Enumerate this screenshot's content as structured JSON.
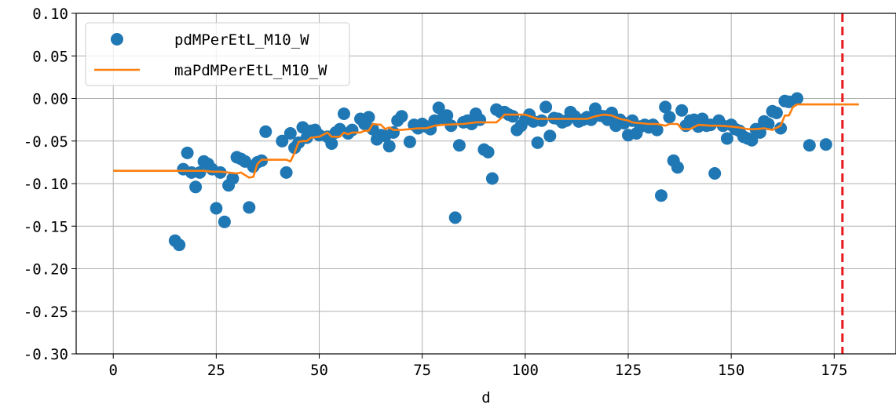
{
  "chart_data": {
    "type": "scatter",
    "title": "",
    "xlabel": "d",
    "ylabel": "",
    "xlim": [
      -9,
      190
    ],
    "ylim": [
      -0.3,
      0.1
    ],
    "grid": true,
    "legend_position": "top-left",
    "x_ticks": [
      0,
      25,
      50,
      75,
      100,
      125,
      150,
      175
    ],
    "x_tick_labels": [
      "0",
      "25",
      "50",
      "75",
      "100",
      "125",
      "150",
      "175"
    ],
    "y_ticks": [
      0.1,
      0.05,
      0.0,
      -0.05,
      -0.1,
      -0.15,
      -0.2,
      -0.25,
      -0.3
    ],
    "y_tick_labels": [
      "0.10",
      "0.05",
      "0.00",
      "-0.05",
      "-0.10",
      "-0.15",
      "-0.20",
      "-0.25",
      "-0.30"
    ],
    "series": [
      {
        "name": "pdMPerEtL_M10_W",
        "kind": "scatter",
        "color": "#1f77b4",
        "x": [
          15,
          16,
          17,
          18,
          19,
          20,
          21,
          22,
          23,
          24,
          25,
          26,
          27,
          28,
          29,
          30,
          31,
          32,
          33,
          34,
          35,
          36,
          37,
          41,
          42,
          43,
          44,
          45,
          46,
          47,
          48,
          49,
          50,
          52,
          53,
          54,
          55,
          56,
          57,
          58,
          60,
          61,
          62,
          63,
          64,
          65,
          66,
          67,
          68,
          69,
          70,
          72,
          73,
          74,
          75,
          76,
          77,
          78,
          79,
          80,
          81,
          82,
          83,
          84,
          85,
          86,
          87,
          88,
          89,
          90,
          91,
          92,
          93,
          94,
          95,
          96,
          97,
          98,
          99,
          100,
          101,
          102,
          103,
          104,
          105,
          106,
          107,
          108,
          109,
          110,
          111,
          112,
          113,
          114,
          115,
          116,
          117,
          118,
          119,
          120,
          121,
          122,
          123,
          124,
          125,
          126,
          127,
          128,
          129,
          130,
          131,
          132,
          133,
          134,
          135,
          136,
          137,
          138,
          139,
          140,
          141,
          142,
          143,
          144,
          145,
          146,
          147,
          148,
          149,
          150,
          151,
          152,
          153,
          154,
          155,
          156,
          157,
          158,
          159,
          160,
          161,
          162,
          163,
          164,
          166,
          169,
          173
        ],
        "y": [
          -0.167,
          -0.172,
          -0.083,
          -0.064,
          -0.087,
          -0.104,
          -0.087,
          -0.074,
          -0.077,
          -0.083,
          -0.129,
          -0.087,
          -0.145,
          -0.102,
          -0.094,
          -0.069,
          -0.071,
          -0.074,
          -0.128,
          -0.08,
          -0.075,
          -0.073,
          -0.039,
          -0.05,
          -0.087,
          -0.041,
          -0.058,
          -0.052,
          -0.034,
          -0.046,
          -0.038,
          -0.037,
          -0.043,
          -0.045,
          -0.053,
          -0.04,
          -0.036,
          -0.018,
          -0.041,
          -0.037,
          -0.024,
          -0.03,
          -0.022,
          -0.036,
          -0.048,
          -0.043,
          -0.044,
          -0.056,
          -0.04,
          -0.026,
          -0.021,
          -0.051,
          -0.031,
          -0.035,
          -0.03,
          -0.033,
          -0.036,
          -0.026,
          -0.011,
          -0.023,
          -0.02,
          -0.032,
          -0.14,
          -0.055,
          -0.028,
          -0.026,
          -0.03,
          -0.018,
          -0.025,
          -0.06,
          -0.063,
          -0.094,
          -0.013,
          -0.016,
          -0.016,
          -0.019,
          -0.021,
          -0.037,
          -0.032,
          -0.025,
          -0.019,
          -0.027,
          -0.052,
          -0.026,
          -0.01,
          -0.044,
          -0.023,
          -0.024,
          -0.028,
          -0.026,
          -0.016,
          -0.021,
          -0.027,
          -0.025,
          -0.022,
          -0.025,
          -0.012,
          -0.02,
          -0.021,
          -0.025,
          -0.017,
          -0.032,
          -0.025,
          -0.029,
          -0.043,
          -0.026,
          -0.041,
          -0.033,
          -0.031,
          -0.034,
          -0.031,
          -0.037,
          -0.114,
          -0.01,
          -0.022,
          -0.073,
          -0.081,
          -0.014,
          -0.032,
          -0.026,
          -0.025,
          -0.033,
          -0.024,
          -0.032,
          -0.031,
          -0.088,
          -0.026,
          -0.032,
          -0.047,
          -0.031,
          -0.036,
          -0.038,
          -0.045,
          -0.047,
          -0.049,
          -0.036,
          -0.04,
          -0.027,
          -0.03,
          -0.015,
          -0.017,
          -0.035,
          -0.003,
          -0.004,
          0.0,
          -0.055,
          -0.054
        ]
      },
      {
        "name": "maPdMPerEtL_M10_W",
        "kind": "line",
        "color": "#ff7f0e",
        "x": [
          0,
          16,
          22,
          24,
          26,
          28,
          30,
          31,
          32,
          33,
          34,
          35,
          36,
          37,
          42,
          43,
          44,
          45,
          46,
          47,
          48,
          50,
          52,
          53,
          55,
          56,
          57,
          58,
          60,
          61,
          62,
          63,
          65,
          66,
          67,
          68,
          70,
          74,
          76,
          78,
          80,
          85,
          88,
          93,
          94,
          95,
          100,
          103,
          107,
          115,
          117,
          119,
          121,
          123,
          125,
          126,
          128,
          130,
          132,
          134,
          135,
          137,
          138,
          140,
          142,
          145,
          147,
          150,
          152,
          154,
          156,
          158,
          160,
          162,
          163,
          164,
          165,
          166,
          176,
          181
        ],
        "y": [
          -0.085,
          -0.085,
          -0.085,
          -0.086,
          -0.086,
          -0.087,
          -0.088,
          -0.087,
          -0.09,
          -0.093,
          -0.092,
          -0.077,
          -0.072,
          -0.072,
          -0.072,
          -0.074,
          -0.064,
          -0.051,
          -0.05,
          -0.05,
          -0.046,
          -0.045,
          -0.04,
          -0.045,
          -0.045,
          -0.04,
          -0.042,
          -0.04,
          -0.04,
          -0.038,
          -0.038,
          -0.03,
          -0.031,
          -0.036,
          -0.034,
          -0.037,
          -0.037,
          -0.035,
          -0.035,
          -0.032,
          -0.031,
          -0.03,
          -0.028,
          -0.028,
          -0.024,
          -0.019,
          -0.019,
          -0.024,
          -0.024,
          -0.024,
          -0.021,
          -0.019,
          -0.02,
          -0.024,
          -0.026,
          -0.028,
          -0.029,
          -0.03,
          -0.03,
          -0.032,
          -0.03,
          -0.03,
          -0.036,
          -0.036,
          -0.031,
          -0.032,
          -0.032,
          -0.033,
          -0.034,
          -0.036,
          -0.036,
          -0.035,
          -0.037,
          -0.032,
          -0.02,
          -0.02,
          -0.01,
          -0.007,
          -0.007,
          -0.007
        ]
      },
      {
        "name": "",
        "kind": "vline",
        "color": "#e8191c",
        "x": 177
      }
    ]
  }
}
